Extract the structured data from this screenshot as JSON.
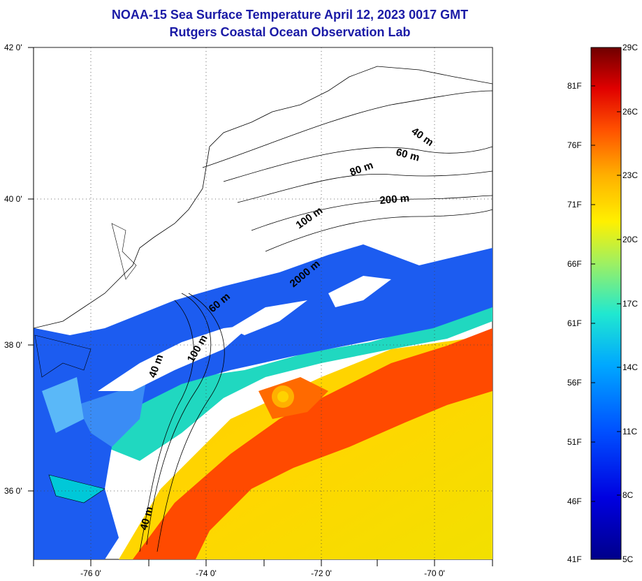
{
  "title": {
    "line1": "NOAA-15 Sea Surface Temperature April 12, 2023 0017 GMT",
    "line2": "Rutgers Coastal Ocean Observation Lab"
  },
  "map": {
    "lat_labels": [
      "42 0'",
      "40 0'",
      "38 0'",
      "36 0'"
    ],
    "lon_labels": [
      "-76 0'",
      "-74 0'",
      "-72 0'",
      "-70 0'"
    ],
    "depth_contours": [
      "40 m",
      "60 m",
      "80 m",
      "200 m",
      "100 m",
      "2000 m",
      "60 m",
      "100 m",
      "40 m",
      "40 m"
    ]
  },
  "colorbar": {
    "fahrenheit": [
      "81F",
      "76F",
      "71F",
      "66F",
      "61F",
      "56F",
      "51F",
      "46F",
      "41F"
    ],
    "celsius": [
      "29C",
      "26C",
      "23C",
      "20C",
      "17C",
      "14C",
      "11C",
      "8C",
      "5C"
    ]
  },
  "colors": {
    "title": "#1a1aa6",
    "cold": "#0000a0",
    "warm": "#ff3000",
    "hot": "#7a0000"
  }
}
